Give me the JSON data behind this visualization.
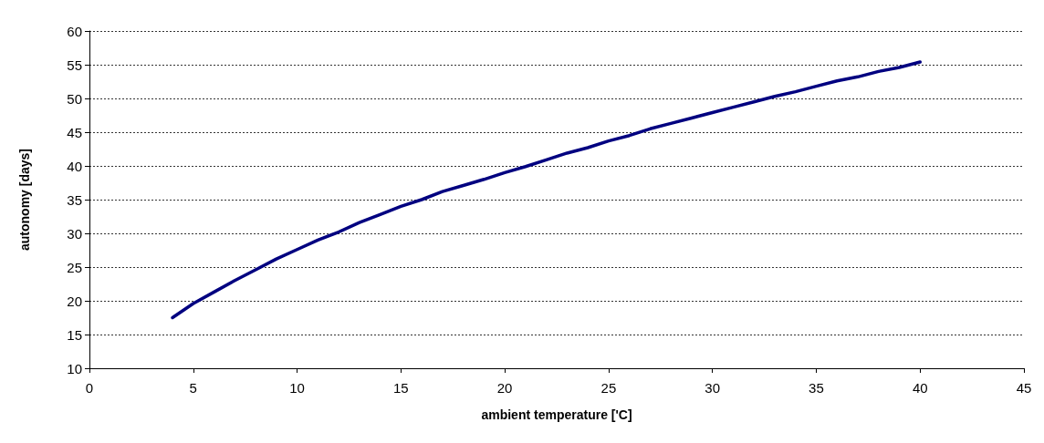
{
  "chart_data": {
    "type": "line",
    "xlabel": "ambient temperature ['C]",
    "ylabel": "autonomy [days]",
    "x": [
      4,
      5,
      6,
      7,
      8,
      9,
      10,
      11,
      12,
      13,
      14,
      15,
      16,
      17,
      18,
      19,
      20,
      21,
      22,
      23,
      24,
      25,
      26,
      27,
      28,
      29,
      30,
      31,
      32,
      33,
      34,
      35,
      36,
      37,
      38,
      39,
      40
    ],
    "series": [
      {
        "color": "#000080",
        "values": [
          17.5,
          19.6,
          21.3,
          23,
          24.6,
          26.2,
          27.6,
          29,
          30.2,
          31.6,
          32.8,
          34,
          35,
          36.2,
          37.1,
          38,
          39,
          39.9,
          40.9,
          41.9,
          42.7,
          43.7,
          44.5,
          45.5,
          46.3,
          47.1,
          47.9,
          48.7,
          49.5,
          50.3,
          51,
          51.8,
          52.6,
          53.2,
          54,
          54.6,
          55.4
        ]
      }
    ],
    "xlim": [
      0,
      45
    ],
    "xticks": [
      0,
      5,
      10,
      15,
      20,
      25,
      30,
      35,
      40,
      45
    ],
    "ylim": [
      10,
      60
    ],
    "yticks": [
      10,
      15,
      20,
      25,
      30,
      35,
      40,
      45,
      50,
      55,
      60
    ],
    "grid": "y",
    "marker": "none",
    "line_style": "solid"
  }
}
